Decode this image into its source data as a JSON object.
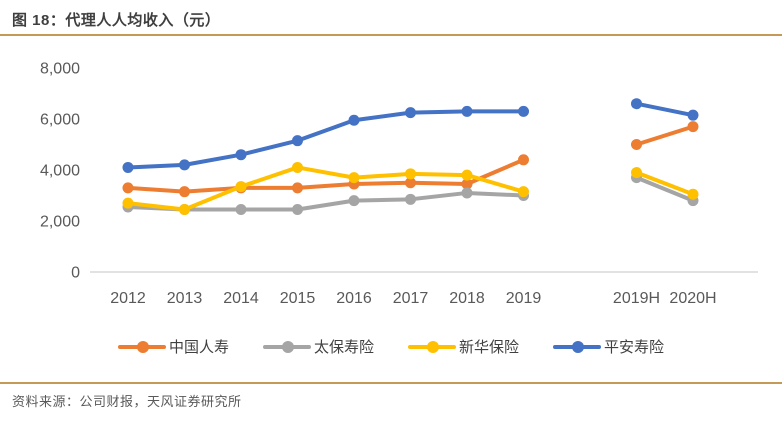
{
  "header": {
    "title": "图 18：代理人人均收入（元）"
  },
  "footer": {
    "source": "资料来源：公司财报，天风证券研究所"
  },
  "colors": {
    "accent_rule": "#C49A56",
    "title_text": "#3F3F3F",
    "axis_text": "#595959",
    "axis_line": "#D9D9D9",
    "legend_text": "#404040"
  },
  "chart_data": {
    "type": "line",
    "title": "代理人人均收入（元）",
    "xlabel": "",
    "ylabel": "",
    "ylim": [
      0,
      8000
    ],
    "yticks": [
      0,
      2000,
      4000,
      6000,
      8000
    ],
    "grid": false,
    "legend_position": "bottom",
    "categories": [
      "2012",
      "2013",
      "2014",
      "2015",
      "2016",
      "2017",
      "2018",
      "2019",
      "",
      "2019H",
      "2020H"
    ],
    "series": [
      {
        "name": "中国人寿",
        "color": "#ED7D31",
        "values": [
          3300,
          3150,
          3300,
          3300,
          3450,
          3500,
          3450,
          4400,
          null,
          5000,
          5700
        ]
      },
      {
        "name": "太保寿险",
        "color": "#A5A5A5",
        "values": [
          2550,
          2450,
          2450,
          2450,
          2800,
          2850,
          3100,
          3000,
          null,
          3700,
          2800
        ]
      },
      {
        "name": "新华保险",
        "color": "#FFC000",
        "values": [
          2700,
          2450,
          3350,
          4100,
          3700,
          3850,
          3800,
          3150,
          null,
          3900,
          3050
        ]
      },
      {
        "name": "平安寿险",
        "color": "#4472C4",
        "values": [
          4100,
          4200,
          4600,
          5150,
          5950,
          6250,
          6300,
          6300,
          null,
          6600,
          6150
        ]
      }
    ]
  }
}
